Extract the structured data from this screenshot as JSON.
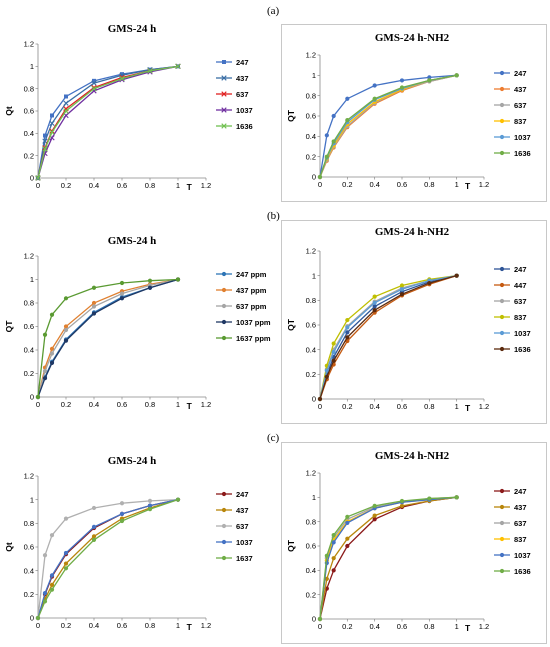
{
  "panel_labels": [
    "(a)",
    "(b)",
    "(c)"
  ],
  "chart_data": [
    {
      "type": "line",
      "title": "GMS-24 h",
      "xlabel": "T",
      "ylabel": "Qt",
      "xlim": [
        0,
        1.2
      ],
      "ylim": [
        0,
        1.2
      ],
      "xticks": [
        "0",
        "0.2",
        "0.4",
        "0.6",
        "0.8",
        "1",
        "1.2"
      ],
      "yticks": [
        "0",
        "0.2",
        "0.4",
        "0.6",
        "0.8",
        "1",
        "1.2"
      ],
      "grid": false,
      "legend_position": "right",
      "x": [
        0,
        0.05,
        0.1,
        0.2,
        0.4,
        0.6,
        0.8,
        1
      ],
      "series": [
        {
          "name": "247",
          "color": "#4472c4",
          "marker": "square",
          "values": [
            0,
            0.38,
            0.56,
            0.73,
            0.87,
            0.93,
            0.97,
            1
          ]
        },
        {
          "name": "437",
          "color": "#3a6ea5",
          "marker": "x",
          "values": [
            0,
            0.33,
            0.49,
            0.67,
            0.85,
            0.92,
            0.97,
            1
          ]
        },
        {
          "name": "637",
          "color": "#e02020",
          "marker": "x",
          "values": [
            0,
            0.27,
            0.42,
            0.62,
            0.81,
            0.9,
            0.96,
            1
          ]
        },
        {
          "name": "1037",
          "color": "#7030a0",
          "marker": "x",
          "values": [
            0,
            0.22,
            0.36,
            0.56,
            0.78,
            0.88,
            0.95,
            1
          ]
        },
        {
          "name": "1636",
          "color": "#70c050",
          "marker": "x",
          "values": [
            0,
            0.26,
            0.41,
            0.6,
            0.8,
            0.89,
            0.96,
            1
          ]
        }
      ]
    },
    {
      "type": "line",
      "title": "GMS-24 h-NH2",
      "xlabel": "T",
      "ylabel": "QT",
      "xlim": [
        0,
        1.2
      ],
      "ylim": [
        0,
        1.2
      ],
      "xticks": [
        "0",
        "0.2",
        "0.4",
        "0.6",
        "0.8",
        "1",
        "1.2"
      ],
      "yticks": [
        "0",
        "0.2",
        "0.4",
        "0.6",
        "0.8",
        "1",
        "1.2"
      ],
      "grid": false,
      "legend_position": "right",
      "x": [
        0,
        0.05,
        0.1,
        0.2,
        0.4,
        0.6,
        0.8,
        1
      ],
      "series": [
        {
          "name": "247",
          "color": "#4472c4",
          "marker": "circle",
          "values": [
            0,
            0.41,
            0.6,
            0.77,
            0.9,
            0.95,
            0.98,
            1
          ]
        },
        {
          "name": "437",
          "color": "#ed7d31",
          "marker": "circle",
          "values": [
            0,
            0.16,
            0.29,
            0.49,
            0.72,
            0.85,
            0.94,
            1
          ]
        },
        {
          "name": "637",
          "color": "#a5a5a5",
          "marker": "circle",
          "values": [
            0,
            0.17,
            0.3,
            0.5,
            0.73,
            0.86,
            0.94,
            1
          ]
        },
        {
          "name": "837",
          "color": "#ffc000",
          "marker": "circle",
          "values": [
            0,
            0.18,
            0.31,
            0.52,
            0.74,
            0.86,
            0.95,
            1
          ]
        },
        {
          "name": "1037",
          "color": "#5b9bd5",
          "marker": "circle",
          "values": [
            0,
            0.19,
            0.33,
            0.54,
            0.76,
            0.87,
            0.95,
            1
          ]
        },
        {
          "name": "1636",
          "color": "#70ad47",
          "marker": "circle",
          "values": [
            0,
            0.2,
            0.35,
            0.56,
            0.77,
            0.88,
            0.95,
            1
          ]
        }
      ]
    },
    {
      "type": "line",
      "title": "GMS-24 h",
      "xlabel": "T",
      "ylabel": "QT",
      "xlim": [
        0,
        1.2
      ],
      "ylim": [
        0,
        1.2
      ],
      "xticks": [
        "0",
        "0.2",
        "0.4",
        "0.6",
        "0.8",
        "1",
        "1.2"
      ],
      "yticks": [
        "0",
        "0.2",
        "0.4",
        "0.6",
        "0.8",
        "1",
        "1.2"
      ],
      "grid": false,
      "legend_position": "right",
      "x": [
        0,
        0.05,
        0.1,
        0.2,
        0.4,
        0.6,
        0.8,
        1
      ],
      "series": [
        {
          "name": "247 ppm",
          "color": "#2e75b6",
          "marker": "circle",
          "values": [
            0,
            0.17,
            0.3,
            0.49,
            0.72,
            0.85,
            0.93,
            1
          ]
        },
        {
          "name": "437 ppm",
          "color": "#e08030",
          "marker": "circle",
          "values": [
            0,
            0.25,
            0.41,
            0.6,
            0.8,
            0.9,
            0.96,
            1
          ]
        },
        {
          "name": "637 ppm",
          "color": "#a5a5a5",
          "marker": "circle",
          "values": [
            0,
            0.22,
            0.37,
            0.57,
            0.77,
            0.88,
            0.95,
            1
          ]
        },
        {
          "name": "1037 ppm",
          "color": "#1f3864",
          "marker": "circle",
          "values": [
            0,
            0.16,
            0.29,
            0.48,
            0.71,
            0.84,
            0.93,
            1
          ]
        },
        {
          "name": "1637 ppm",
          "color": "#5a9a32",
          "marker": "circle",
          "values": [
            0,
            0.53,
            0.7,
            0.84,
            0.93,
            0.97,
            0.99,
            1
          ]
        }
      ]
    },
    {
      "type": "line",
      "title": "GMS-24 h-NH2",
      "xlabel": "T",
      "ylabel": "QT",
      "xlim": [
        0,
        1.2
      ],
      "ylim": [
        0,
        1.2
      ],
      "xticks": [
        "0",
        "0.2",
        "0.4",
        "0.6",
        "0.8",
        "1",
        "1.2"
      ],
      "yticks": [
        "0",
        "0.2",
        "0.4",
        "0.6",
        "0.8",
        "1",
        "1.2"
      ],
      "grid": false,
      "legend_position": "right",
      "x": [
        0,
        0.05,
        0.1,
        0.2,
        0.4,
        0.6,
        0.8,
        1
      ],
      "series": [
        {
          "name": "247",
          "color": "#2f5597",
          "marker": "circle",
          "values": [
            0,
            0.2,
            0.34,
            0.54,
            0.75,
            0.87,
            0.95,
            1
          ]
        },
        {
          "name": "447",
          "color": "#c55a11",
          "marker": "circle",
          "values": [
            0,
            0.16,
            0.28,
            0.47,
            0.7,
            0.84,
            0.93,
            1
          ]
        },
        {
          "name": "637",
          "color": "#a5a5a5",
          "marker": "circle",
          "values": [
            0,
            0.24,
            0.4,
            0.59,
            0.79,
            0.9,
            0.96,
            1
          ]
        },
        {
          "name": "837",
          "color": "#bfbf00",
          "marker": "circle",
          "values": [
            0,
            0.27,
            0.45,
            0.64,
            0.83,
            0.92,
            0.97,
            1
          ]
        },
        {
          "name": "1037",
          "color": "#5b9bd5",
          "marker": "circle",
          "values": [
            0,
            0.23,
            0.38,
            0.58,
            0.78,
            0.89,
            0.96,
            1
          ]
        },
        {
          "name": "1636",
          "color": "#5c2b0e",
          "marker": "circle",
          "values": [
            0,
            0.18,
            0.31,
            0.5,
            0.72,
            0.85,
            0.94,
            1
          ]
        }
      ]
    },
    {
      "type": "line",
      "title": "GMS-24 h",
      "xlabel": "T",
      "ylabel": "Qt",
      "xlim": [
        0,
        1.2
      ],
      "ylim": [
        0,
        1.2
      ],
      "xticks": [
        "0",
        "0.2",
        "0.4",
        "0.6",
        "0.8",
        "1",
        "1.2"
      ],
      "yticks": [
        "0",
        "0.2",
        "0.4",
        "0.6",
        "0.8",
        "1",
        "1.2"
      ],
      "grid": false,
      "legend_position": "right",
      "x": [
        0,
        0.05,
        0.1,
        0.2,
        0.4,
        0.6,
        0.8,
        1
      ],
      "series": [
        {
          "name": "247",
          "color": "#8b1a1a",
          "marker": "circle",
          "values": [
            0,
            0.2,
            0.35,
            0.54,
            0.76,
            0.88,
            0.95,
            1
          ]
        },
        {
          "name": "437",
          "color": "#b8860b",
          "marker": "circle",
          "values": [
            0,
            0.16,
            0.28,
            0.46,
            0.69,
            0.84,
            0.93,
            1
          ]
        },
        {
          "name": "637",
          "color": "#b0b0b0",
          "marker": "circle",
          "values": [
            0,
            0.53,
            0.7,
            0.84,
            0.93,
            0.97,
            0.99,
            1
          ]
        },
        {
          "name": "1037",
          "color": "#4472c4",
          "marker": "circle",
          "values": [
            0,
            0.21,
            0.36,
            0.55,
            0.77,
            0.88,
            0.95,
            1
          ]
        },
        {
          "name": "1637",
          "color": "#70ad47",
          "marker": "circle",
          "values": [
            0,
            0.14,
            0.24,
            0.42,
            0.66,
            0.82,
            0.92,
            1
          ]
        }
      ]
    },
    {
      "type": "line",
      "title": "GMS-24 h-NH2",
      "xlabel": "T",
      "ylabel": "QT",
      "xlim": [
        0,
        1.2
      ],
      "ylim": [
        0,
        1.2
      ],
      "xticks": [
        "0",
        "0.2",
        "0.4",
        "0.6",
        "0.8",
        "1",
        "1.2"
      ],
      "yticks": [
        "0",
        "0.2",
        "0.4",
        "0.6",
        "0.8",
        "1",
        "1.2"
      ],
      "grid": false,
      "legend_position": "right",
      "x": [
        0,
        0.05,
        0.1,
        0.2,
        0.4,
        0.6,
        0.8,
        1
      ],
      "series": [
        {
          "name": "247",
          "color": "#8b1a1a",
          "marker": "circle",
          "values": [
            0,
            0.25,
            0.4,
            0.6,
            0.82,
            0.92,
            0.97,
            1
          ]
        },
        {
          "name": "437",
          "color": "#b8860b",
          "marker": "circle",
          "values": [
            0,
            0.33,
            0.5,
            0.66,
            0.85,
            0.93,
            0.97,
            1
          ]
        },
        {
          "name": "637",
          "color": "#a5a5a5",
          "marker": "circle",
          "values": [
            0,
            0.5,
            0.67,
            0.82,
            0.92,
            0.96,
            0.99,
            1
          ]
        },
        {
          "name": "837",
          "color": "#ffc000",
          "marker": "circle",
          "values": [
            0,
            0.48,
            0.65,
            0.8,
            0.91,
            0.96,
            0.98,
            1
          ]
        },
        {
          "name": "1037",
          "color": "#4472c4",
          "marker": "circle",
          "values": [
            0,
            0.46,
            0.63,
            0.79,
            0.91,
            0.96,
            0.98,
            1
          ]
        },
        {
          "name": "1636",
          "color": "#70ad47",
          "marker": "circle",
          "values": [
            0,
            0.52,
            0.69,
            0.84,
            0.93,
            0.97,
            0.99,
            1
          ]
        }
      ]
    }
  ]
}
